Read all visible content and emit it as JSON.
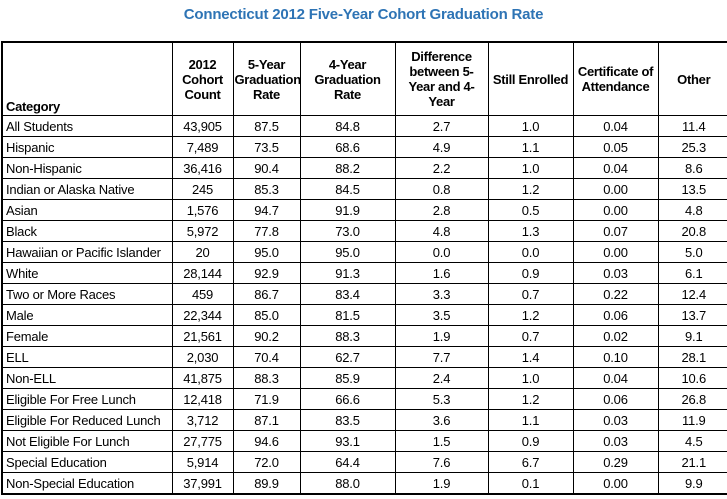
{
  "title": "Connecticut 2012 Five-Year Cohort Graduation Rate",
  "colors": {
    "title_text": "#2E74B5",
    "table_border": "#000000",
    "cell_text": "#000000",
    "background": "#FFFFFF"
  },
  "chart_data": {
    "type": "table",
    "title": "Connecticut 2012 Five-Year Cohort Graduation Rate",
    "columns": [
      "Category",
      "2012 Cohort Count",
      "5-Year Graduation Rate",
      "4-Year Graduation Rate",
      "Difference between 5-Year and 4-Year",
      "Still Enrolled",
      "Certificate of Attendance",
      "Other"
    ],
    "rows": [
      [
        "All Students",
        "43,905",
        "87.5",
        "84.8",
        "2.7",
        "1.0",
        "0.04",
        "11.4"
      ],
      [
        "Hispanic",
        "7,489",
        "73.5",
        "68.6",
        "4.9",
        "1.1",
        "0.05",
        "25.3"
      ],
      [
        "Non-Hispanic",
        "36,416",
        "90.4",
        "88.2",
        "2.2",
        "1.0",
        "0.04",
        "8.6"
      ],
      [
        "Indian or Alaska Native",
        "245",
        "85.3",
        "84.5",
        "0.8",
        "1.2",
        "0.00",
        "13.5"
      ],
      [
        "Asian",
        "1,576",
        "94.7",
        "91.9",
        "2.8",
        "0.5",
        "0.00",
        "4.8"
      ],
      [
        "Black",
        "5,972",
        "77.8",
        "73.0",
        "4.8",
        "1.3",
        "0.07",
        "20.8"
      ],
      [
        "Hawaiian or Pacific Islander",
        "20",
        "95.0",
        "95.0",
        "0.0",
        "0.0",
        "0.00",
        "5.0"
      ],
      [
        "White",
        "28,144",
        "92.9",
        "91.3",
        "1.6",
        "0.9",
        "0.03",
        "6.1"
      ],
      [
        "Two or More Races",
        "459",
        "86.7",
        "83.4",
        "3.3",
        "0.7",
        "0.22",
        "12.4"
      ],
      [
        "Male",
        "22,344",
        "85.0",
        "81.5",
        "3.5",
        "1.2",
        "0.06",
        "13.7"
      ],
      [
        "Female",
        "21,561",
        "90.2",
        "88.3",
        "1.9",
        "0.7",
        "0.02",
        "9.1"
      ],
      [
        "ELL",
        "2,030",
        "70.4",
        "62.7",
        "7.7",
        "1.4",
        "0.10",
        "28.1"
      ],
      [
        "Non-ELL",
        "41,875",
        "88.3",
        "85.9",
        "2.4",
        "1.0",
        "0.04",
        "10.6"
      ],
      [
        "Eligible For Free Lunch",
        "12,418",
        "71.9",
        "66.6",
        "5.3",
        "1.2",
        "0.06",
        "26.8"
      ],
      [
        "Eligible For Reduced Lunch",
        "3,712",
        "87.1",
        "83.5",
        "3.6",
        "1.1",
        "0.03",
        "11.9"
      ],
      [
        "Not Eligible For Lunch",
        "27,775",
        "94.6",
        "93.1",
        "1.5",
        "0.9",
        "0.03",
        "4.5"
      ],
      [
        "Special Education",
        "5,914",
        "72.0",
        "64.4",
        "7.6",
        "6.7",
        "0.29",
        "21.1"
      ],
      [
        "Non-Special Education",
        "37,991",
        "89.9",
        "88.0",
        "1.9",
        "0.1",
        "0.00",
        "9.9"
      ]
    ]
  }
}
